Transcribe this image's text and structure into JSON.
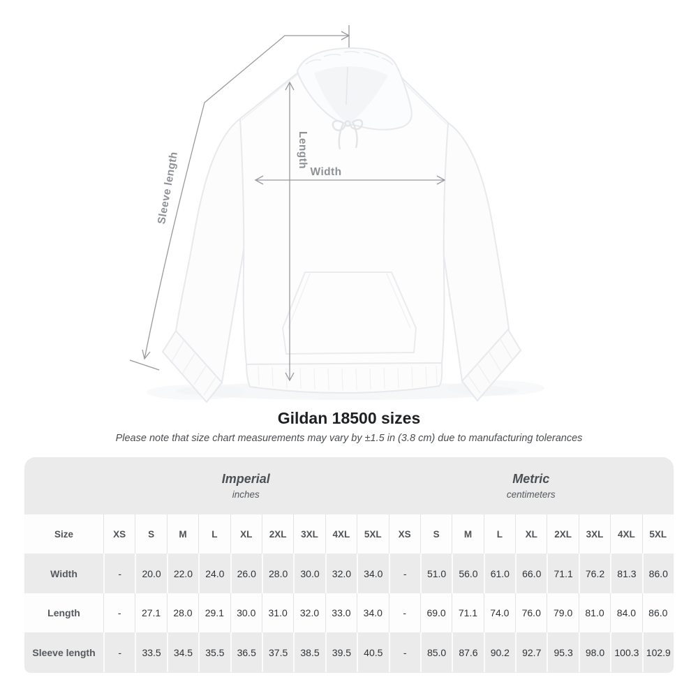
{
  "diagram": {
    "length_label": "Length",
    "width_label": "Width",
    "sleeve_label": "Sleeve length"
  },
  "title": "Gildan 18500 sizes",
  "note": "Please note that size chart measurements may vary by ±1.5 in (3.8 cm) due to manufacturing tolerances",
  "table": {
    "size_col_header": "Size",
    "unit_groups": [
      {
        "name": "Imperial",
        "unit": "inches"
      },
      {
        "name": "Metric",
        "unit": "centimeters"
      }
    ],
    "sizes": [
      "XS",
      "S",
      "M",
      "L",
      "XL",
      "2XL",
      "3XL",
      "4XL",
      "5XL"
    ],
    "rows": [
      {
        "label": "Width",
        "imperial": [
          "-",
          "20.0",
          "22.0",
          "24.0",
          "26.0",
          "28.0",
          "30.0",
          "32.0",
          "34.0"
        ],
        "metric": [
          "-",
          "51.0",
          "56.0",
          "61.0",
          "66.0",
          "71.1",
          "76.2",
          "81.3",
          "86.0"
        ]
      },
      {
        "label": "Length",
        "imperial": [
          "-",
          "27.1",
          "28.0",
          "29.1",
          "30.0",
          "31.0",
          "32.0",
          "33.0",
          "34.0"
        ],
        "metric": [
          "-",
          "69.0",
          "71.1",
          "74.0",
          "76.0",
          "79.0",
          "81.0",
          "84.0",
          "86.0"
        ]
      },
      {
        "label": "Sleeve length",
        "imperial": [
          "-",
          "33.5",
          "34.5",
          "35.5",
          "36.5",
          "37.5",
          "38.5",
          "39.5",
          "40.5"
        ],
        "metric": [
          "-",
          "85.0",
          "87.6",
          "90.2",
          "92.7",
          "95.3",
          "98.0",
          "100.3",
          "102.9"
        ]
      }
    ]
  },
  "colors": {
    "table_band_gray": "#ebebeb",
    "row_white": "#fdfdfd",
    "dimension_line_gray": "#97999d",
    "dim_label_gray": "#8e9195",
    "title_dark": "#1e2022"
  }
}
